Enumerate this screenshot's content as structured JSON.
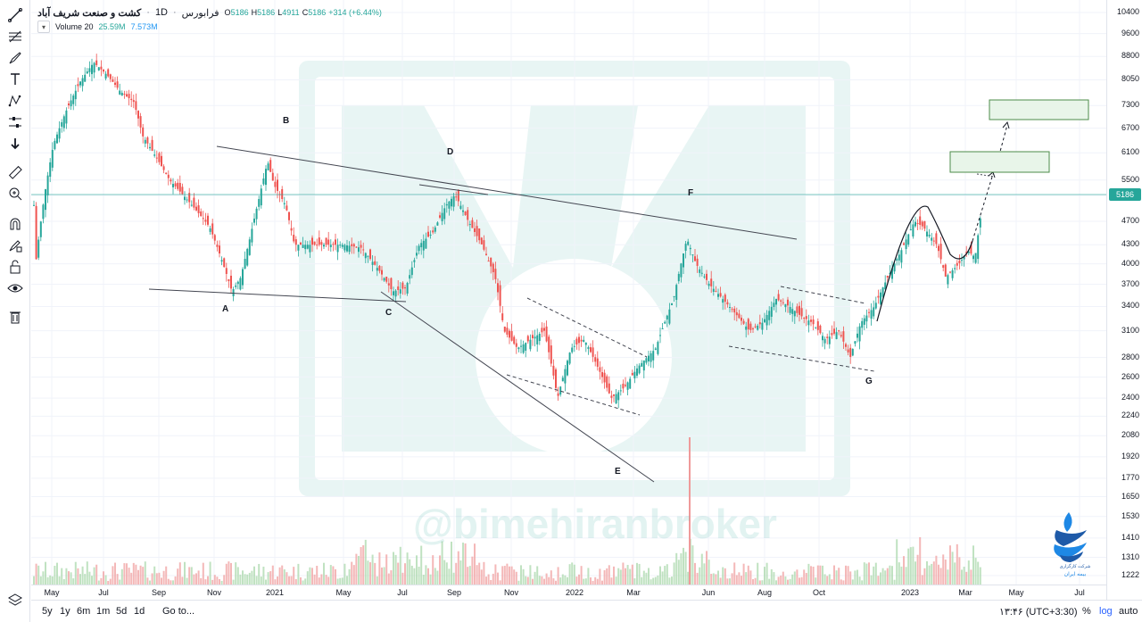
{
  "legend": {
    "symbol": "کشت و صنعت شریف آباد",
    "interval": "1D",
    "exchange": "فرابورس",
    "open_label": "O",
    "open": "5186",
    "high_label": "H",
    "high": "5186",
    "low_label": "L",
    "low": "4911",
    "close_label": "C",
    "close": "5186",
    "change": "+314 (+6.44%)"
  },
  "volume_legend": {
    "label": "Volume 20",
    "value1": "25.59M",
    "value2": "7.573M",
    "collapse_icon": "chevron-down-icon"
  },
  "toolbar": {
    "tools": [
      "line-tool-icon",
      "fib-tool-icon",
      "brush-icon",
      "text-icon",
      "pattern-icon",
      "measure-tool-icon",
      "arrow-down-icon",
      "ruler-icon",
      "zoom-icon",
      "magnet-icon",
      "lock-drawing-icon",
      "lock-icon",
      "eye-icon",
      "trash-icon"
    ],
    "bottom_icon": "layers-icon"
  },
  "bottom_bar": {
    "ranges": [
      "5y",
      "1y",
      "6m",
      "1m",
      "5d",
      "1d"
    ],
    "goto": "Go to...",
    "clock": "۱۳:۴۶ (UTC+3:30)",
    "percent": "%",
    "log": "log",
    "auto": "auto"
  },
  "watermark": "@bimehiranbroker",
  "logo": {
    "line1": "شرکت کارگزاری",
    "line2": "بیمه ایران"
  },
  "colors": {
    "up": "#26a69a",
    "down": "#ef5350",
    "accent": "#2962ff",
    "last_price_bg": "#26a69a"
  },
  "chart_data": {
    "type": "candlestick",
    "scale": "log",
    "last_price": "5186",
    "ylim": [
      1222,
      10400
    ],
    "y_ticks": [
      "10400",
      "9600",
      "8800",
      "8050",
      "7300",
      "6700",
      "6100",
      "5500",
      "5186",
      "4700",
      "4300",
      "4000",
      "3700",
      "3400",
      "3100",
      "2800",
      "2600",
      "2400",
      "2240",
      "2080",
      "1920",
      "1770",
      "1650",
      "1530",
      "1410",
      "1310",
      "1222"
    ],
    "x_ticks": [
      "May",
      "Jul",
      "Sep",
      "Nov",
      "2021",
      "May",
      "Jul",
      "Sep",
      "Nov",
      "2022",
      "Mar",
      "Jun",
      "Aug",
      "Oct",
      "2023",
      "Mar",
      "May",
      "Jul"
    ],
    "wave_labels": [
      "A",
      "B",
      "C",
      "D",
      "E",
      "F",
      "G"
    ],
    "targets": [
      "target-zone-1",
      "target-zone-2"
    ]
  }
}
